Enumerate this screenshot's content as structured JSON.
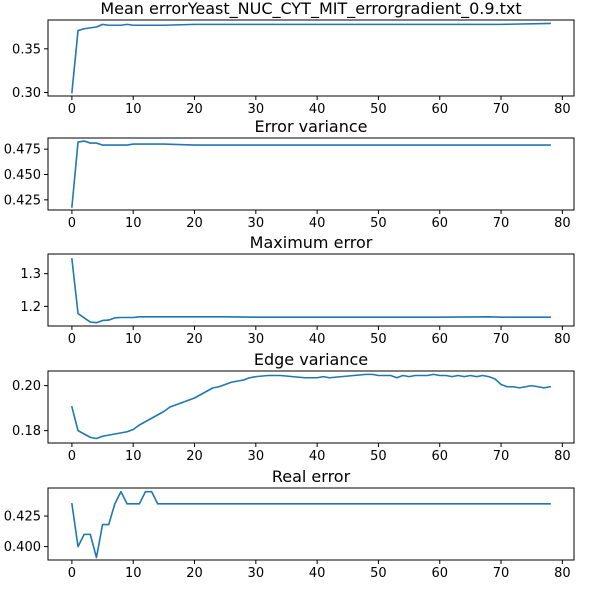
{
  "chart_data": [
    {
      "type": "line",
      "title": "Mean errorYeast_NUC_CYT_MIT_errorgradient_0.9.txt",
      "xlabel": "",
      "ylabel": "",
      "xlim": [
        -3.9,
        81.9
      ],
      "ylim": [
        0.296,
        0.383
      ],
      "xticks": [
        0,
        10,
        20,
        30,
        40,
        50,
        60,
        70,
        80
      ],
      "yticks": [
        0.3,
        0.35
      ],
      "ytick_labels": [
        "0.30",
        "0.35"
      ],
      "grid": false,
      "series": [
        {
          "points": [
            [
              0,
              0.3
            ],
            [
              1,
              0.371
            ],
            [
              2,
              0.373
            ],
            [
              3,
              0.374
            ],
            [
              4,
              0.375
            ],
            [
              5,
              0.378
            ],
            [
              6,
              0.377
            ],
            [
              7,
              0.377
            ],
            [
              8,
              0.377
            ],
            [
              9,
              0.378
            ],
            [
              10,
              0.377
            ],
            [
              12,
              0.377
            ],
            [
              15,
              0.377
            ],
            [
              20,
              0.378
            ],
            [
              30,
              0.378
            ],
            [
              40,
              0.378
            ],
            [
              50,
              0.378
            ],
            [
              60,
              0.378
            ],
            [
              70,
              0.378
            ],
            [
              78,
              0.379
            ]
          ]
        }
      ]
    },
    {
      "type": "line",
      "title": "Error variance",
      "xlabel": "",
      "ylabel": "",
      "xlim": [
        -3.9,
        81.9
      ],
      "ylim": [
        0.415,
        0.486
      ],
      "xticks": [
        0,
        10,
        20,
        30,
        40,
        50,
        60,
        70,
        80
      ],
      "yticks": [
        0.425,
        0.45,
        0.475
      ],
      "ytick_labels": [
        "0.425",
        "0.450",
        "0.475"
      ],
      "grid": false,
      "series": [
        {
          "points": [
            [
              0,
              0.418
            ],
            [
              1,
              0.482
            ],
            [
              2,
              0.483
            ],
            [
              3,
              0.481
            ],
            [
              4,
              0.481
            ],
            [
              5,
              0.479
            ],
            [
              6,
              0.479
            ],
            [
              8,
              0.479
            ],
            [
              9,
              0.479
            ],
            [
              10,
              0.48
            ],
            [
              12,
              0.48
            ],
            [
              15,
              0.48
            ],
            [
              20,
              0.479
            ],
            [
              30,
              0.479
            ],
            [
              40,
              0.479
            ],
            [
              50,
              0.479
            ],
            [
              60,
              0.479
            ],
            [
              68,
              0.479
            ],
            [
              70,
              0.479
            ],
            [
              78,
              0.479
            ]
          ]
        }
      ]
    },
    {
      "type": "line",
      "title": "Maximum error",
      "xlabel": "",
      "ylabel": "",
      "xlim": [
        -3.9,
        81.9
      ],
      "ylim": [
        1.14,
        1.36
      ],
      "xticks": [
        0,
        10,
        20,
        30,
        40,
        50,
        60,
        70,
        80
      ],
      "yticks": [
        1.2,
        1.3
      ],
      "ytick_labels": [
        "1.2",
        "1.3"
      ],
      "grid": false,
      "series": [
        {
          "points": [
            [
              0,
              1.345
            ],
            [
              1,
              1.178
            ],
            [
              2,
              1.165
            ],
            [
              3,
              1.152
            ],
            [
              4,
              1.15
            ],
            [
              5,
              1.157
            ],
            [
              6,
              1.158
            ],
            [
              7,
              1.165
            ],
            [
              8,
              1.166
            ],
            [
              9,
              1.166
            ],
            [
              10,
              1.166
            ],
            [
              11,
              1.168
            ],
            [
              15,
              1.168
            ],
            [
              20,
              1.168
            ],
            [
              25,
              1.168
            ],
            [
              30,
              1.167
            ],
            [
              40,
              1.167
            ],
            [
              50,
              1.167
            ],
            [
              60,
              1.167
            ],
            [
              68,
              1.168
            ],
            [
              70,
              1.167
            ],
            [
              78,
              1.167
            ]
          ]
        }
      ]
    },
    {
      "type": "line",
      "title": "Edge variance",
      "xlabel": "",
      "ylabel": "",
      "xlim": [
        -3.9,
        81.9
      ],
      "ylim": [
        0.1745,
        0.2065
      ],
      "xticks": [
        0,
        10,
        20,
        30,
        40,
        50,
        60,
        70,
        80
      ],
      "yticks": [
        0.18,
        0.2
      ],
      "ytick_labels": [
        "0.18",
        "0.20"
      ],
      "grid": false,
      "series": [
        {
          "points": [
            [
              0,
              0.1905
            ],
            [
              1,
              0.18
            ],
            [
              2,
              0.1785
            ],
            [
              3,
              0.177
            ],
            [
              4,
              0.1765
            ],
            [
              5,
              0.1775
            ],
            [
              6,
              0.178
            ],
            [
              7,
              0.1785
            ],
            [
              8,
              0.179
            ],
            [
              9,
              0.1795
            ],
            [
              10,
              0.1805
            ],
            [
              11,
              0.1825
            ],
            [
              12,
              0.184
            ],
            [
              13,
              0.1855
            ],
            [
              14,
              0.187
            ],
            [
              15,
              0.1885
            ],
            [
              16,
              0.1905
            ],
            [
              17,
              0.1915
            ],
            [
              18,
              0.1925
            ],
            [
              19,
              0.1935
            ],
            [
              20,
              0.1945
            ],
            [
              21,
              0.196
            ],
            [
              22,
              0.1975
            ],
            [
              23,
              0.199
            ],
            [
              24,
              0.1995
            ],
            [
              25,
              0.2005
            ],
            [
              26,
              0.2015
            ],
            [
              27,
              0.202
            ],
            [
              28,
              0.2025
            ],
            [
              29,
              0.2035
            ],
            [
              30,
              0.204
            ],
            [
              32,
              0.2045
            ],
            [
              34,
              0.2045
            ],
            [
              36,
              0.204
            ],
            [
              38,
              0.2035
            ],
            [
              40,
              0.2035
            ],
            [
              41,
              0.204
            ],
            [
              42,
              0.2035
            ],
            [
              44,
              0.204
            ],
            [
              46,
              0.2045
            ],
            [
              48,
              0.205
            ],
            [
              49,
              0.205
            ],
            [
              50,
              0.2045
            ],
            [
              52,
              0.2045
            ],
            [
              53,
              0.2035
            ],
            [
              54,
              0.2045
            ],
            [
              55,
              0.204
            ],
            [
              56,
              0.2045
            ],
            [
              58,
              0.2045
            ],
            [
              59,
              0.205
            ],
            [
              60,
              0.2045
            ],
            [
              61,
              0.2045
            ],
            [
              62,
              0.204
            ],
            [
              63,
              0.2045
            ],
            [
              64,
              0.204
            ],
            [
              65,
              0.2045
            ],
            [
              66,
              0.204
            ],
            [
              67,
              0.2045
            ],
            [
              68,
              0.204
            ],
            [
              69,
              0.203
            ],
            [
              70,
              0.2005
            ],
            [
              71,
              0.1995
            ],
            [
              72,
              0.1995
            ],
            [
              73,
              0.199
            ],
            [
              74,
              0.1995
            ],
            [
              75,
              0.2
            ],
            [
              76,
              0.1995
            ],
            [
              77,
              0.199
            ],
            [
              78,
              0.1995
            ]
          ]
        }
      ]
    },
    {
      "type": "line",
      "title": "Real error",
      "xlabel": "",
      "ylabel": "",
      "xlim": [
        -3.9,
        81.9
      ],
      "ylim": [
        0.389,
        0.448
      ],
      "xticks": [
        0,
        10,
        20,
        30,
        40,
        50,
        60,
        70,
        80
      ],
      "yticks": [
        0.4,
        0.425
      ],
      "ytick_labels": [
        "0.400",
        "0.425"
      ],
      "grid": false,
      "series": [
        {
          "points": [
            [
              0,
              0.435
            ],
            [
              1,
              0.4
            ],
            [
              2,
              0.41
            ],
            [
              3,
              0.41
            ],
            [
              4,
              0.391
            ],
            [
              5,
              0.418
            ],
            [
              6,
              0.418
            ],
            [
              7,
              0.435
            ],
            [
              8,
              0.445
            ],
            [
              9,
              0.435
            ],
            [
              10,
              0.435
            ],
            [
              11,
              0.435
            ],
            [
              12,
              0.445
            ],
            [
              13,
              0.445
            ],
            [
              14,
              0.435
            ],
            [
              15,
              0.435
            ],
            [
              20,
              0.435
            ],
            [
              30,
              0.435
            ],
            [
              40,
              0.435
            ],
            [
              50,
              0.435
            ],
            [
              60,
              0.435
            ],
            [
              70,
              0.435
            ],
            [
              78,
              0.435
            ]
          ]
        }
      ]
    }
  ]
}
